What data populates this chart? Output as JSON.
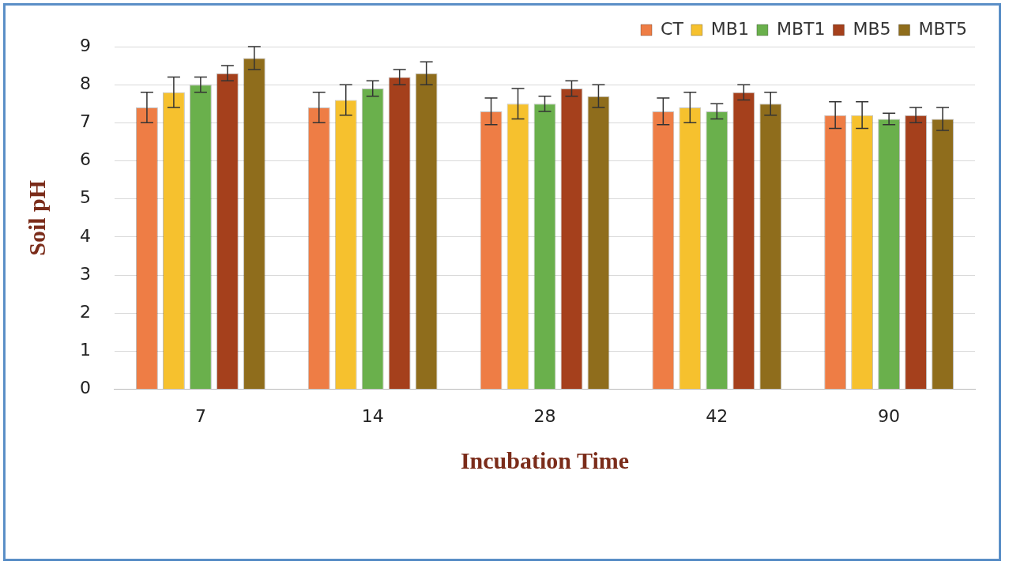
{
  "chart_data": {
    "type": "bar",
    "xlabel": "Incubation Time",
    "ylabel": "Soil pH",
    "categories": [
      "7",
      "14",
      "28",
      "42",
      "90"
    ],
    "series": [
      {
        "name": "CT",
        "color": "#ee7d45",
        "values": [
          7.4,
          7.4,
          7.3,
          7.3,
          7.2
        ],
        "errors": [
          0.4,
          0.4,
          0.35,
          0.35,
          0.35
        ]
      },
      {
        "name": "MB1",
        "color": "#f6c12e",
        "values": [
          7.8,
          7.6,
          7.5,
          7.4,
          7.2
        ],
        "errors": [
          0.4,
          0.4,
          0.4,
          0.4,
          0.35
        ]
      },
      {
        "name": "MBT1",
        "color": "#6ab04c",
        "values": [
          8.0,
          7.9,
          7.5,
          7.3,
          7.1
        ],
        "errors": [
          0.2,
          0.2,
          0.2,
          0.2,
          0.15
        ]
      },
      {
        "name": "MB5",
        "color": "#a5401c",
        "values": [
          8.3,
          8.2,
          7.9,
          7.8,
          7.2
        ],
        "errors": [
          0.2,
          0.2,
          0.2,
          0.2,
          0.2
        ]
      },
      {
        "name": "MBT5",
        "color": "#8f6d1c",
        "values": [
          8.7,
          8.3,
          7.7,
          7.5,
          7.1
        ],
        "errors": [
          0.3,
          0.3,
          0.3,
          0.3,
          0.3
        ]
      }
    ],
    "ylim": [
      0,
      9
    ],
    "yticks": [
      0,
      1,
      2,
      3,
      4,
      5,
      6,
      7,
      8,
      9
    ],
    "grid": "y",
    "legend": "top right"
  }
}
